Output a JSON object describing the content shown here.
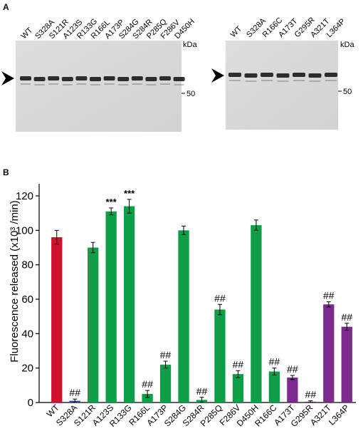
{
  "panel_a": {
    "letter": "A",
    "gel_left": {
      "lanes": [
        "WT",
        "S328A",
        "S121R",
        "A123S",
        "R133G",
        "R166L",
        "A173P",
        "S284G",
        "S284R",
        "P285Q",
        "F286V",
        "D450H"
      ],
      "kda_label": "kDa",
      "marker_label": "50"
    },
    "gel_right": {
      "lanes": [
        "WT",
        "S328A",
        "R166C",
        "A173T",
        "G295R",
        "A321T",
        "L364P"
      ],
      "kda_label": "kDa",
      "marker_label": "50"
    }
  },
  "panel_b": {
    "letter": "B"
  },
  "colors": {
    "wt": "#d0112b",
    "s328a": "#2a4fa0",
    "mutant_green": "#0f9d48",
    "mutant_purple": "#7d2a8f"
  },
  "chart_data": {
    "type": "bar",
    "categories": [
      "WT",
      "S328A",
      "S121R",
      "A123S",
      "R133G",
      "R166L",
      "A173P",
      "S284G",
      "S284R",
      "P285Q",
      "F286V",
      "D450H",
      "R166C",
      "A173T",
      "G295R",
      "A321T",
      "L364P"
    ],
    "values": [
      96,
      1,
      90,
      111,
      114,
      5,
      22,
      100,
      1.5,
      54,
      16.5,
      103,
      18,
      14.5,
      0.5,
      57,
      44
    ],
    "errors": [
      4,
      1,
      3,
      2,
      4,
      2,
      2,
      2.5,
      1.5,
      3,
      2,
      3,
      2,
      1.2,
      0.5,
      1.5,
      2
    ],
    "colors": [
      "#d0112b",
      "#2a4fa0",
      "#0f9d48",
      "#0f9d48",
      "#0f9d48",
      "#0f9d48",
      "#0f9d48",
      "#0f9d48",
      "#0f9d48",
      "#0f9d48",
      "#0f9d48",
      "#0f9d48",
      "#0f9d48",
      "#7d2a8f",
      "#7d2a8f",
      "#7d2a8f",
      "#7d2a8f"
    ],
    "annotations": [
      "",
      "##",
      "",
      "***",
      "***",
      "##",
      "##",
      "",
      "##",
      "##",
      "##",
      "",
      "##",
      "##",
      "##",
      "##",
      "##"
    ],
    "ylabel": "Fluorescence released (x10³ /min)",
    "ylim": [
      0,
      120
    ],
    "yticks": [
      0,
      20,
      40,
      60,
      80,
      100,
      120
    ],
    "grid": false
  }
}
